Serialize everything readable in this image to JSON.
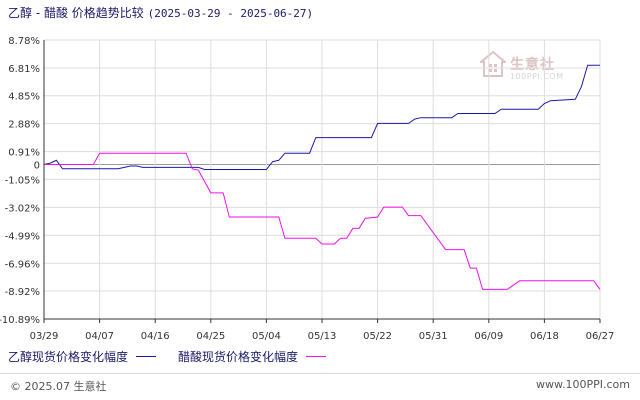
{
  "header": {
    "title": "乙醇 - 醋酸 价格趋势比较",
    "range": "(2025-03-29 - 2025-06-27)"
  },
  "watermark": {
    "text": "生意社",
    "url": "100PPI.COM"
  },
  "footer": {
    "copyright": "© 2025.07 生意社",
    "url": "www.100PPI.com"
  },
  "colors": {
    "series1": "#1a1aaa",
    "series2": "#ee11ee",
    "axis": "#333333",
    "grid": "#dddddd",
    "zero": "#999999"
  },
  "chart_data": {
    "type": "line",
    "title": "乙醇 - 醋酸 价格趋势比较",
    "ylim": [
      -10.89,
      8.78
    ],
    "yticks": [
      "8.78%",
      "6.81%",
      "4.85%",
      "2.88%",
      "0.91%",
      "0",
      "-1.05%",
      "-3.02%",
      "-4.99%",
      "-6.96%",
      "-8.92%",
      "-10.89%"
    ],
    "ytick_values": [
      8.78,
      6.81,
      4.85,
      2.88,
      0.91,
      0,
      -1.05,
      -3.02,
      -4.99,
      -6.96,
      -8.92,
      -10.89
    ],
    "xticks": [
      "03/29",
      "04/07",
      "04/16",
      "04/25",
      "05/04",
      "05/13",
      "05/22",
      "05/31",
      "06/09",
      "06/18",
      "06/27"
    ],
    "xlim": [
      "2025-03-29",
      "2025-06-27"
    ],
    "grid": true,
    "legend_position": "bottom-left",
    "series": [
      {
        "name": "乙醇现货价格变化幅度",
        "color": "#1a1aaa",
        "points": [
          [
            "2025-03-29",
            0
          ],
          [
            "2025-03-30",
            0.1
          ],
          [
            "2025-03-31",
            0.3
          ],
          [
            "2025-04-01",
            -0.3
          ],
          [
            "2025-04-10",
            -0.3
          ],
          [
            "2025-04-11",
            -0.2
          ],
          [
            "2025-04-12",
            -0.1
          ],
          [
            "2025-04-13",
            -0.1
          ],
          [
            "2025-04-14",
            -0.2
          ],
          [
            "2025-04-23",
            -0.2
          ],
          [
            "2025-04-24",
            -0.35
          ],
          [
            "2025-05-04",
            -0.35
          ],
          [
            "2025-05-05",
            0.2
          ],
          [
            "2025-05-06",
            0.3
          ],
          [
            "2025-05-07",
            0.8
          ],
          [
            "2025-05-11",
            0.8
          ],
          [
            "2025-05-12",
            1.9
          ],
          [
            "2025-05-21",
            1.9
          ],
          [
            "2025-05-22",
            2.9
          ],
          [
            "2025-05-27",
            2.9
          ],
          [
            "2025-05-28",
            3.2
          ],
          [
            "2025-05-29",
            3.3
          ],
          [
            "2025-06-03",
            3.3
          ],
          [
            "2025-06-04",
            3.6
          ],
          [
            "2025-06-10",
            3.6
          ],
          [
            "2025-06-11",
            3.9
          ],
          [
            "2025-06-17",
            3.9
          ],
          [
            "2025-06-18",
            4.3
          ],
          [
            "2025-06-19",
            4.5
          ],
          [
            "2025-06-23",
            4.6
          ],
          [
            "2025-06-24",
            5.5
          ],
          [
            "2025-06-25",
            7.0
          ],
          [
            "2025-06-27",
            7.0
          ]
        ]
      },
      {
        "name": "醋酸现货价格变化幅度",
        "color": "#ee11ee",
        "points": [
          [
            "2025-03-29",
            0
          ],
          [
            "2025-04-06",
            0
          ],
          [
            "2025-04-07",
            0.8
          ],
          [
            "2025-04-21",
            0.8
          ],
          [
            "2025-04-22",
            -0.3
          ],
          [
            "2025-04-23",
            -0.4
          ],
          [
            "2025-04-25",
            -2.0
          ],
          [
            "2025-04-27",
            -2.0
          ],
          [
            "2025-04-28",
            -3.7
          ],
          [
            "2025-05-06",
            -3.7
          ],
          [
            "2025-05-07",
            -5.2
          ],
          [
            "2025-05-12",
            -5.2
          ],
          [
            "2025-05-13",
            -5.6
          ],
          [
            "2025-05-15",
            -5.6
          ],
          [
            "2025-05-16",
            -5.2
          ],
          [
            "2025-05-17",
            -5.2
          ],
          [
            "2025-05-18",
            -4.5
          ],
          [
            "2025-05-19",
            -4.5
          ],
          [
            "2025-05-20",
            -3.8
          ],
          [
            "2025-05-22",
            -3.7
          ],
          [
            "2025-05-23",
            -3.0
          ],
          [
            "2025-05-26",
            -3.0
          ],
          [
            "2025-05-27",
            -3.6
          ],
          [
            "2025-05-29",
            -3.6
          ],
          [
            "2025-06-02",
            -6.0
          ],
          [
            "2025-06-05",
            -6.0
          ],
          [
            "2025-06-06",
            -7.3
          ],
          [
            "2025-06-07",
            -7.3
          ],
          [
            "2025-06-08",
            -8.8
          ],
          [
            "2025-06-12",
            -8.8
          ],
          [
            "2025-06-14",
            -8.2
          ],
          [
            "2025-06-26",
            -8.2
          ],
          [
            "2025-06-27",
            -8.8
          ]
        ]
      }
    ]
  }
}
